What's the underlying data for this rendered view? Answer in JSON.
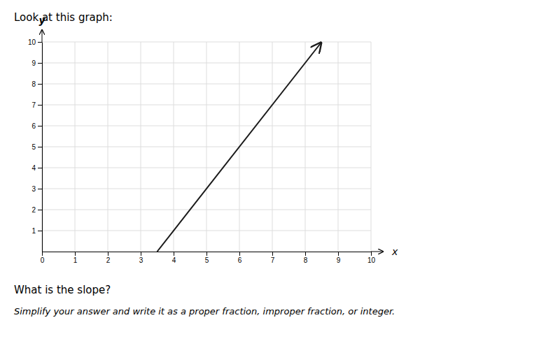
{
  "chart_data": {
    "type": "line",
    "title": "Look at this graph:",
    "x": [
      3.5,
      8.5
    ],
    "values": [
      0,
      10
    ],
    "color": "#1a1a1a",
    "xlim": [
      0,
      10
    ],
    "ylim": [
      0,
      10
    ],
    "xticks": [
      0,
      1,
      2,
      3,
      4,
      5,
      6,
      7,
      8,
      9,
      10
    ],
    "yticks": [
      1,
      2,
      3,
      4,
      5,
      6,
      7,
      8,
      9,
      10
    ],
    "xlabel": "x",
    "ylabel": "y",
    "grid": true,
    "annotations": [
      "What is the slope?",
      "Simplify your answer and write it as a proper fraction, improper fraction, or integer."
    ]
  }
}
